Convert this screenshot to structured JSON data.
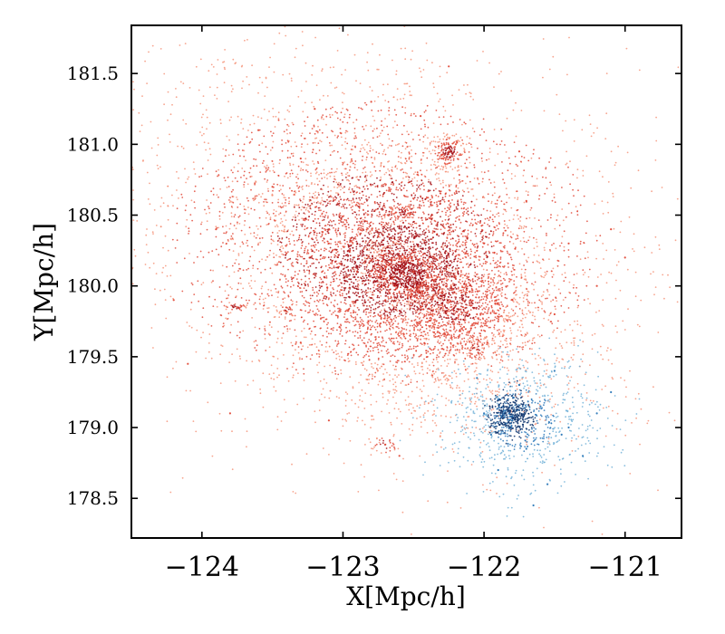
{
  "chart_data": {
    "type": "scatter",
    "title": "",
    "xlabel": "X[Mpc/h]",
    "ylabel": "Y[Mpc/h]",
    "xlim": [
      -124.5,
      -120.6
    ],
    "ylim": [
      178.22,
      181.84
    ],
    "xticks": [
      -124,
      -123,
      -122,
      -121
    ],
    "xtick_labels": [
      "−124",
      "−123",
      "−122",
      "−121"
    ],
    "yticks": [
      178.5,
      179.0,
      179.5,
      180.0,
      180.5,
      181.0,
      181.5
    ],
    "ytick_labels": [
      "178.5",
      "179.0",
      "179.5",
      "180.0",
      "180.5",
      "181.0",
      "181.5"
    ],
    "grid": false,
    "legend": "none",
    "colors": {
      "red_light": "#f4876a",
      "red_mid": "#e0402e",
      "red_dark": "#a50f15",
      "blue_light": "#6baed6",
      "blue_mid": "#2171b5",
      "blue_dark": "#08306b"
    },
    "series": [
      {
        "color_scale": "red",
        "points": [
          [
            -122.57,
            180.08
          ],
          [
            -122.5,
            180.1
          ],
          [
            -122.65,
            180.05
          ],
          [
            -122.8,
            180.18
          ],
          [
            -122.95,
            180.25
          ],
          [
            -123.1,
            180.3
          ],
          [
            -122.3,
            179.95
          ],
          [
            -122.15,
            179.85
          ],
          [
            -122.05,
            179.8
          ],
          [
            -122.4,
            180.0
          ],
          [
            -122.6,
            180.2
          ],
          [
            -122.75,
            180.35
          ],
          [
            -122.9,
            180.1
          ],
          [
            -122.7,
            179.9
          ],
          [
            -122.45,
            179.85
          ],
          [
            -122.2,
            180.05
          ],
          [
            -122.35,
            180.2
          ],
          [
            -123.0,
            180.45
          ],
          [
            -122.55,
            180.5
          ],
          [
            -122.25,
            180.6
          ],
          [
            -122.25,
            180.95
          ],
          [
            -122.3,
            180.9
          ],
          [
            -122.2,
            181.0
          ],
          [
            -123.75,
            179.85
          ],
          [
            -123.4,
            179.82
          ],
          [
            -122.05,
            179.55
          ],
          [
            -122.7,
            178.88
          ],
          [
            -123.3,
            179.6
          ],
          [
            -123.5,
            180.7
          ],
          [
            -123.9,
            180.4
          ],
          [
            -123.6,
            181.1
          ],
          [
            -123.2,
            181.25
          ],
          [
            -122.8,
            181.3
          ],
          [
            -122.45,
            181.2
          ],
          [
            -122.25,
            181.55
          ],
          [
            -121.7,
            180.6
          ],
          [
            -121.4,
            180.3
          ],
          [
            -121.2,
            180.0
          ],
          [
            -121.5,
            179.8
          ],
          [
            -121.75,
            180.95
          ],
          [
            -124.1,
            179.45
          ],
          [
            -123.8,
            179.1
          ],
          [
            -123.1,
            179.05
          ],
          [
            -122.6,
            178.8
          ],
          [
            -124.2,
            179.9
          ],
          [
            -121.1,
            180.4
          ],
          [
            -121.0,
            180.2
          ],
          [
            -122.0,
            180.3
          ],
          [
            -121.9,
            179.75
          ],
          [
            -123.3,
            180.9
          ]
        ]
      },
      {
        "color_scale": "blue",
        "points": [
          [
            -121.85,
            179.12
          ],
          [
            -121.8,
            179.05
          ],
          [
            -121.9,
            179.2
          ],
          [
            -121.75,
            179.3
          ],
          [
            -121.95,
            178.95
          ],
          [
            -121.6,
            179.15
          ],
          [
            -121.7,
            178.85
          ],
          [
            -122.0,
            179.1
          ],
          [
            -121.5,
            179.4
          ],
          [
            -121.4,
            179.0
          ],
          [
            -121.3,
            178.8
          ],
          [
            -121.55,
            178.6
          ],
          [
            -121.65,
            178.45
          ],
          [
            -121.1,
            179.25
          ],
          [
            -121.9,
            178.7
          ],
          [
            -122.05,
            179.35
          ],
          [
            -121.45,
            178.95
          ],
          [
            -121.2,
            179.1
          ]
        ]
      }
    ]
  }
}
